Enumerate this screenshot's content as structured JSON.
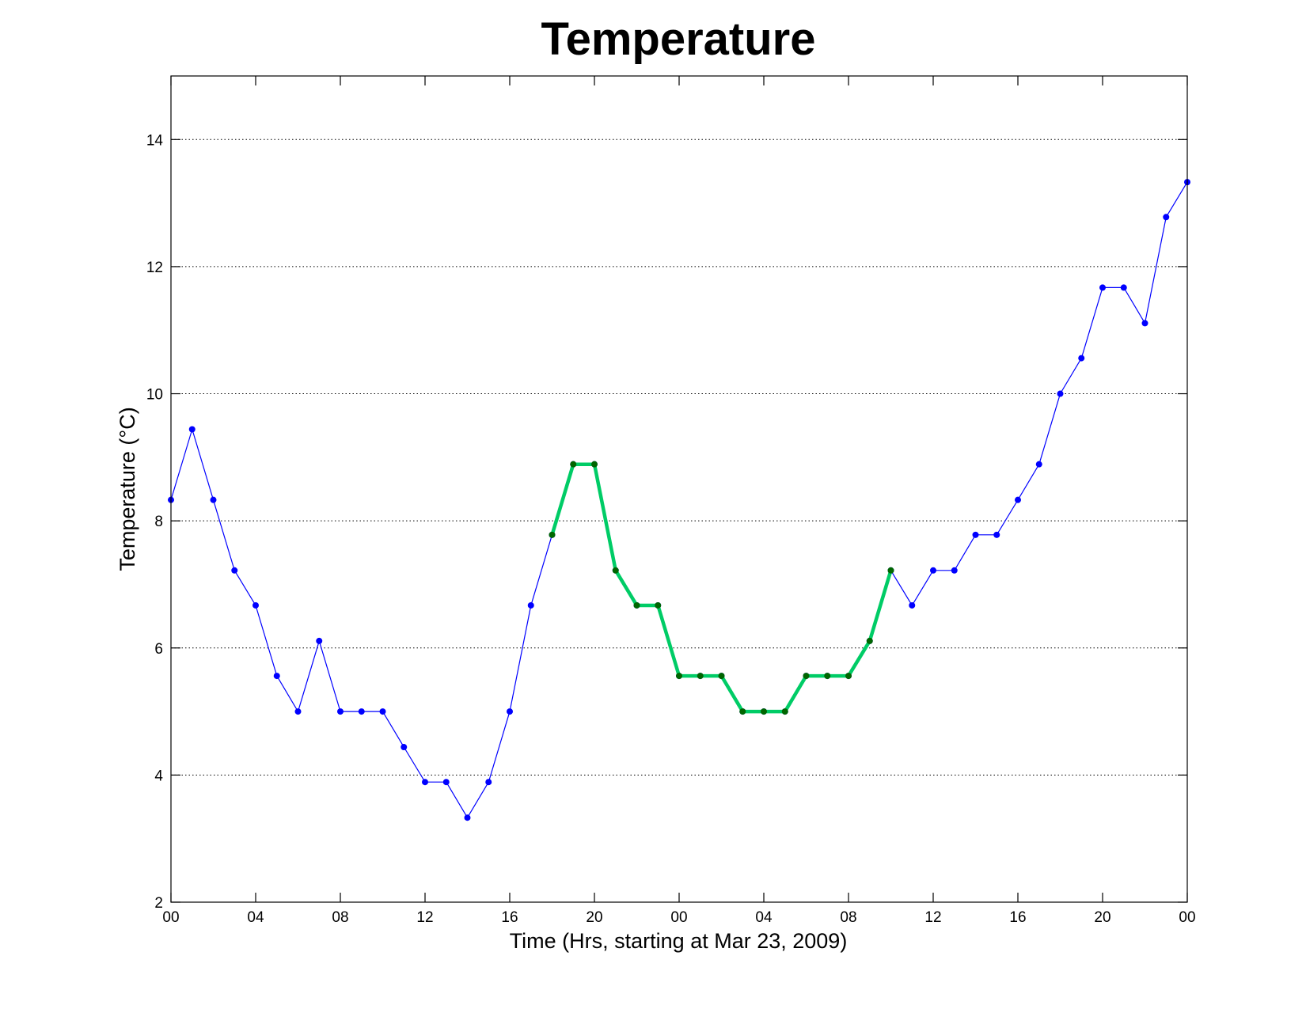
{
  "chart_data": {
    "type": "line",
    "title": "Temperature",
    "xlabel": "Time (Hrs, starting at Mar 23, 2009)",
    "ylabel": "Temperature (°C)",
    "xlim": [
      0,
      48
    ],
    "ylim": [
      2,
      15
    ],
    "grid": "y-dotted",
    "x_tick_values": [
      0,
      4,
      8,
      12,
      16,
      20,
      24,
      28,
      32,
      36,
      40,
      44,
      48
    ],
    "x_tick_labels": [
      "00",
      "04",
      "08",
      "12",
      "16",
      "20",
      "00",
      "04",
      "08",
      "12",
      "16",
      "20",
      "00"
    ],
    "y_tick_values": [
      2,
      4,
      6,
      8,
      10,
      12,
      14
    ],
    "y_tick_labels": [
      "2",
      "4",
      "6",
      "8",
      "10",
      "12",
      "14"
    ],
    "series": [
      {
        "color": "#0000ff",
        "style": "thin-line-with-dots",
        "x": [
          0,
          1,
          2,
          3,
          4,
          5,
          6,
          7,
          8,
          9,
          10,
          11,
          12,
          13,
          14,
          15,
          16,
          17,
          18,
          19,
          20,
          21,
          22,
          23,
          24,
          25,
          26,
          27,
          28,
          29,
          30,
          31,
          32,
          33,
          34,
          35,
          36,
          37,
          38,
          39,
          40,
          41,
          42,
          43,
          44,
          45,
          46,
          47,
          48
        ],
        "y": [
          8.33,
          9.44,
          8.33,
          7.22,
          6.67,
          5.56,
          5.0,
          6.11,
          5.0,
          5.0,
          5.0,
          4.44,
          3.89,
          3.89,
          3.33,
          3.89,
          5.0,
          6.67,
          7.78,
          8.89,
          8.89,
          7.22,
          6.67,
          6.67,
          5.56,
          5.56,
          5.56,
          5.0,
          5.0,
          5.0,
          5.56,
          5.56,
          5.56,
          6.11,
          7.22,
          6.67,
          7.22,
          7.22,
          7.78,
          7.78,
          8.33,
          8.89,
          10.0,
          10.56,
          11.67,
          11.67,
          11.11,
          12.78,
          13.33
        ]
      },
      {
        "color": "#00cc66",
        "marker_color": "#006600",
        "style": "thick-line-with-dots",
        "x": [
          18,
          19,
          20,
          21,
          22,
          23,
          24,
          25,
          26,
          27,
          28,
          29,
          30,
          31,
          32,
          33,
          34
        ],
        "y": [
          7.78,
          8.89,
          8.89,
          7.22,
          6.67,
          6.67,
          5.56,
          5.56,
          5.56,
          5.0,
          5.0,
          5.0,
          5.56,
          5.56,
          5.56,
          6.11,
          7.22
        ]
      }
    ]
  }
}
